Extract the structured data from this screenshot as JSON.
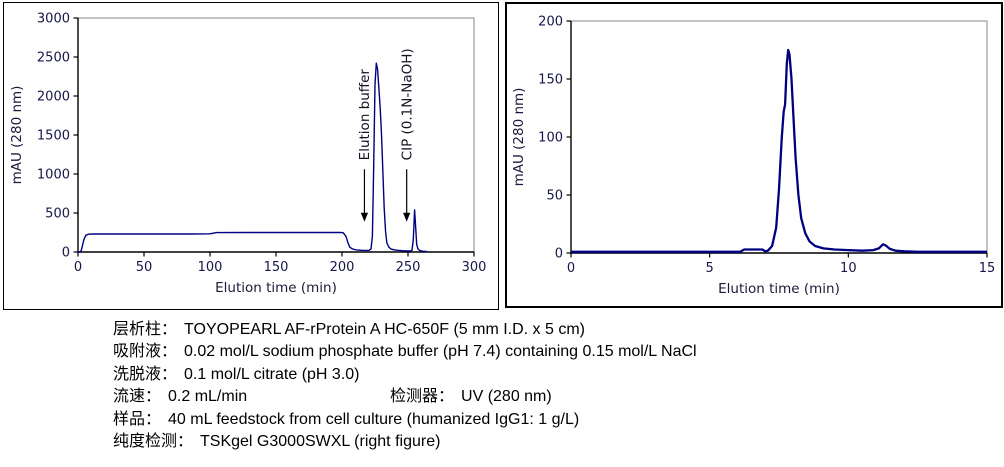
{
  "chart_data": [
    {
      "type": "line",
      "title": "",
      "xlabel": "Elution time (min)",
      "ylabel": "mAU (280 nm)",
      "xlim": [
        0,
        300
      ],
      "ylim": [
        0,
        3000
      ],
      "xticks": [
        0,
        50,
        100,
        150,
        200,
        250,
        300
      ],
      "yticks": [
        0,
        500,
        1000,
        1500,
        2000,
        2500,
        3000
      ],
      "grid": false,
      "legend": "none",
      "line_color": "#000080",
      "axis_color": "#000000",
      "border_color": "#848484",
      "annotations": [
        {
          "text": "Elution buffer",
          "x": 217,
          "arrow_from": 1060,
          "arrow_to": 490
        },
        {
          "text": "CIP (0.1N-NaOH)",
          "x": 249,
          "arrow_from": 1060,
          "arrow_to": 490
        }
      ],
      "series": [
        {
          "points": [
            [
              0,
              0
            ],
            [
              1.5,
              0
            ],
            [
              2.5,
              20
            ],
            [
              3.5,
              90
            ],
            [
              4.5,
              160
            ],
            [
              6,
              215
            ],
            [
              8,
              228
            ],
            [
              12,
              231
            ],
            [
              30,
              231
            ],
            [
              60,
              231
            ],
            [
              85,
              231
            ],
            [
              100,
              233
            ],
            [
              102,
              240
            ],
            [
              105,
              249
            ],
            [
              130,
              250
            ],
            [
              160,
              250
            ],
            [
              185,
              250
            ],
            [
              199,
              250
            ],
            [
              201,
              246
            ],
            [
              203,
              200
            ],
            [
              204.5,
              120
            ],
            [
              206,
              60
            ],
            [
              208,
              38
            ],
            [
              211,
              27
            ],
            [
              215,
              22
            ],
            [
              218,
              20
            ],
            [
              220.5,
              22
            ],
            [
              222,
              40
            ],
            [
              223,
              200
            ],
            [
              224,
              1100
            ],
            [
              225,
              2150
            ],
            [
              226,
              2420
            ],
            [
              227,
              2340
            ],
            [
              228,
              2080
            ],
            [
              229,
              1820
            ],
            [
              230,
              1480
            ],
            [
              231,
              1020
            ],
            [
              232,
              560
            ],
            [
              233,
              255
            ],
            [
              234,
              115
            ],
            [
              235.5,
              62
            ],
            [
              237,
              40
            ],
            [
              239,
              30
            ],
            [
              242,
              22
            ],
            [
              246,
              17
            ],
            [
              250,
              14
            ],
            [
              252,
              13
            ],
            [
              253,
              22
            ],
            [
              254,
              160
            ],
            [
              255,
              540
            ],
            [
              255.8,
              310
            ],
            [
              256.6,
              95
            ],
            [
              257.6,
              38
            ],
            [
              259,
              18
            ],
            [
              261,
              10
            ],
            [
              263,
              7
            ],
            [
              264.5,
              6
            ]
          ]
        }
      ]
    },
    {
      "type": "line",
      "title": "",
      "xlabel": "Elution time (min)",
      "ylabel": "mAU (280 nm)",
      "xlim": [
        0,
        15
      ],
      "ylim": [
        0,
        200
      ],
      "xticks": [
        0,
        5,
        10,
        15
      ],
      "yticks": [
        0,
        50,
        100,
        150,
        200
      ],
      "grid": false,
      "legend": "none",
      "line_color": "#000080",
      "axis_color": "#000000",
      "border_color": "#848484",
      "annotations": [],
      "series": [
        {
          "points": [
            [
              0,
              1
            ],
            [
              2,
              1
            ],
            [
              4,
              1
            ],
            [
              5.5,
              1
            ],
            [
              6.1,
              1
            ],
            [
              6.25,
              3
            ],
            [
              6.9,
              3
            ],
            [
              7.0,
              1.5
            ],
            [
              7.1,
              2
            ],
            [
              7.25,
              6
            ],
            [
              7.4,
              22
            ],
            [
              7.5,
              55
            ],
            [
              7.6,
              100
            ],
            [
              7.67,
              122
            ],
            [
              7.72,
              128
            ],
            [
              7.78,
              163
            ],
            [
              7.83,
              175
            ],
            [
              7.88,
              171
            ],
            [
              7.95,
              150
            ],
            [
              8.02,
              118
            ],
            [
              8.1,
              82
            ],
            [
              8.2,
              50
            ],
            [
              8.3,
              30
            ],
            [
              8.45,
              17
            ],
            [
              8.6,
              10
            ],
            [
              8.8,
              6
            ],
            [
              9.1,
              4
            ],
            [
              9.5,
              3
            ],
            [
              10,
              2.5
            ],
            [
              10.5,
              2
            ],
            [
              10.9,
              2.5
            ],
            [
              11.1,
              4
            ],
            [
              11.25,
              7.5
            ],
            [
              11.35,
              6.5
            ],
            [
              11.5,
              3.5
            ],
            [
              11.7,
              2
            ],
            [
              12,
              1.5
            ],
            [
              12.5,
              1
            ],
            [
              13.5,
              1
            ],
            [
              15,
              1
            ]
          ]
        }
      ]
    }
  ],
  "caption": {
    "lines": [
      {
        "label": "层析柱：",
        "value": "TOYOPEARL AF-rProtein A HC-650F (5 mm I.D. x 5 cm)"
      },
      {
        "label": "吸附液：",
        "value": "0.02 mol/L sodium phosphate buffer (pH 7.4) containing 0.15 mol/L NaCl"
      },
      {
        "label": "洗脱液：",
        "value": "0.1 mol/L citrate (pH 3.0)"
      },
      {
        "label": "流速：",
        "value": "0.2 mL/min",
        "label2": "检测器：",
        "value2": "UV (280 nm)"
      },
      {
        "label": "样品：",
        "value": "40 mL feedstock from cell culture (humanized IgG1: 1 g/L)"
      },
      {
        "label": "纯度检测：",
        "value": "TSKgel G3000SWXL (right figure)"
      }
    ]
  }
}
